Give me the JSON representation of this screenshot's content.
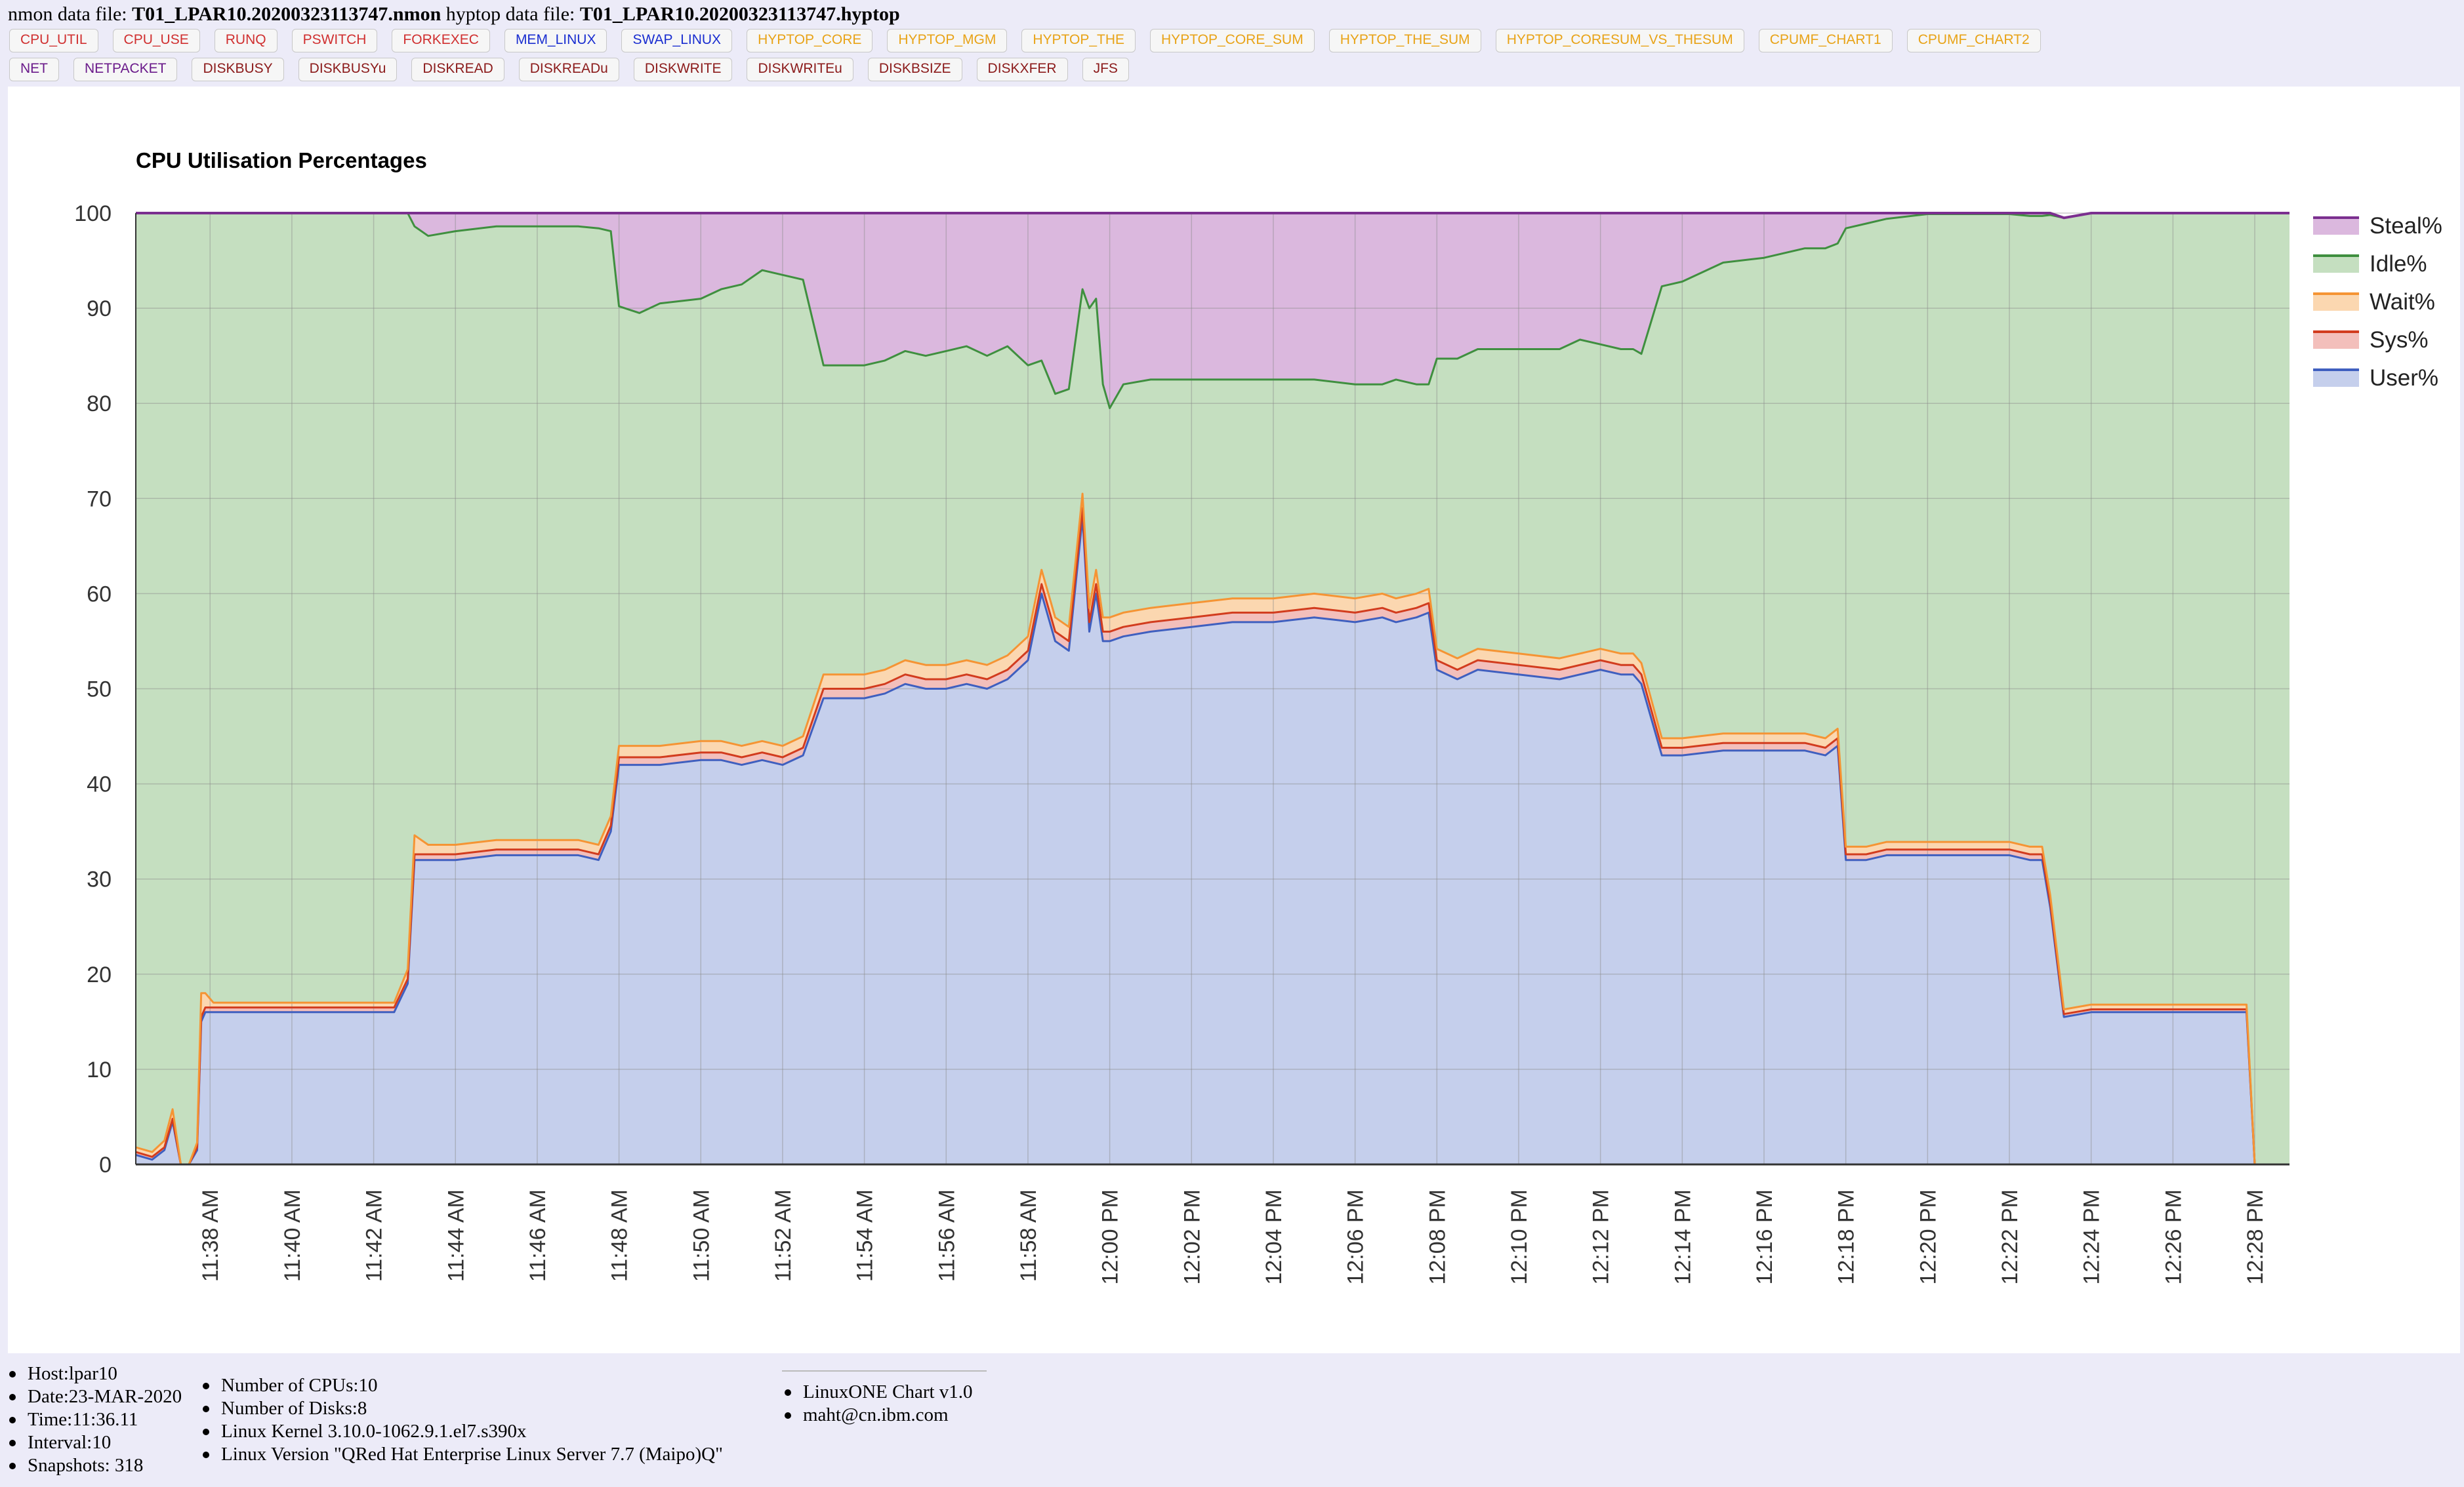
{
  "header": {
    "nmon_prefix": "nmon data file: ",
    "nmon_file": "T01_LPAR10.20200323113747.nmon",
    "hyptop_prefix": " hyptop data file: ",
    "hyptop_file": "T01_LPAR10.20200323113747.hyptop"
  },
  "buttons_row1": [
    {
      "label": "CPU_UTIL",
      "color": "#d03030"
    },
    {
      "label": "CPU_USE",
      "color": "#d03030"
    },
    {
      "label": "RUNQ",
      "color": "#d03030"
    },
    {
      "label": "PSWITCH",
      "color": "#d03030"
    },
    {
      "label": "FORKEXEC",
      "color": "#d03030"
    },
    {
      "label": "MEM_LINUX",
      "color": "#1a2ed0"
    },
    {
      "label": "SWAP_LINUX",
      "color": "#1a2ed0"
    },
    {
      "label": "HYPTOP_CORE",
      "color": "#e8a317"
    },
    {
      "label": "HYPTOP_MGM",
      "color": "#e8a317"
    },
    {
      "label": "HYPTOP_THE",
      "color": "#e8a317"
    },
    {
      "label": "HYPTOP_CORE_SUM",
      "color": "#e8a317"
    },
    {
      "label": "HYPTOP_THE_SUM",
      "color": "#e8a317"
    },
    {
      "label": "HYPTOP_CORESUM_VS_THESUM",
      "color": "#e8a317"
    },
    {
      "label": "CPUMF_CHART1",
      "color": "#e8a317"
    },
    {
      "label": "CPUMF_CHART2",
      "color": "#e8a317"
    }
  ],
  "buttons_row2": [
    {
      "label": "NET",
      "color": "#6a1a8a"
    },
    {
      "label": "NETPACKET",
      "color": "#6a1a8a"
    },
    {
      "label": "DISKBUSY",
      "color": "#8b1a1a"
    },
    {
      "label": "DISKBUSYu",
      "color": "#8b1a1a"
    },
    {
      "label": "DISKREAD",
      "color": "#8b1a1a"
    },
    {
      "label": "DISKREADu",
      "color": "#8b1a1a"
    },
    {
      "label": "DISKWRITE",
      "color": "#8b1a1a"
    },
    {
      "label": "DISKWRITEu",
      "color": "#8b1a1a"
    },
    {
      "label": "DISKBSIZE",
      "color": "#8b1a1a"
    },
    {
      "label": "DISKXFER",
      "color": "#8b1a1a"
    },
    {
      "label": "JFS",
      "color": "#8b1a1a"
    }
  ],
  "chart_data": {
    "type": "area",
    "stacked": true,
    "title": "CPU Utilisation Percentages",
    "ylim": [
      0,
      100
    ],
    "yticks": [
      0,
      10,
      20,
      30,
      40,
      50,
      60,
      70,
      80,
      90,
      100
    ],
    "xlim": [
      "11:36:11",
      "12:28:51"
    ],
    "xticks": [
      "11:38 AM",
      "11:40 AM",
      "11:42 AM",
      "11:44 AM",
      "11:46 AM",
      "11:48 AM",
      "11:50 AM",
      "11:52 AM",
      "11:54 AM",
      "11:56 AM",
      "11:58 AM",
      "12:00 PM",
      "12:02 PM",
      "12:04 PM",
      "12:06 PM",
      "12:08 PM",
      "12:10 PM",
      "12:12 PM",
      "12:14 PM",
      "12:16 PM",
      "12:18 PM",
      "12:20 PM",
      "12:22 PM",
      "12:24 PM",
      "12:26 PM",
      "12:28 PM"
    ],
    "grid": true,
    "legend_position": "right",
    "legend": [
      "Steal%",
      "Idle%",
      "Wait%",
      "Sys%",
      "User%"
    ],
    "series_colors": {
      "User%": {
        "line": "#3f5fbf",
        "fill": "#c5cfec"
      },
      "Sys%": {
        "line": "#d23c1e",
        "fill": "#f3bfbb"
      },
      "Wait%": {
        "line": "#f59434",
        "fill": "#fbd7b0"
      },
      "Idle%": {
        "line": "#3f8f3f",
        "fill": "#c5dfc0"
      },
      "Steal%": {
        "line": "#7b2f8f",
        "fill": "#dbb8de"
      }
    },
    "x": [
      "11:36:11",
      "11:36:35",
      "11:36:53",
      "11:37:05",
      "11:37:17",
      "11:37:29",
      "11:37:41",
      "11:37:47",
      "11:37:53",
      "11:38:05",
      "11:38:35",
      "11:39:10",
      "11:40:00",
      "11:41:00",
      "11:41:30",
      "11:42:00",
      "11:42:30",
      "11:42:50",
      "11:43:00",
      "11:43:20",
      "11:44:00",
      "11:45:00",
      "11:46:00",
      "11:47:00",
      "11:47:30",
      "11:47:48",
      "11:48:00",
      "11:48:30",
      "11:49:00",
      "11:50:00",
      "11:50:30",
      "11:51:00",
      "11:51:30",
      "11:52:00",
      "11:52:30",
      "11:53:00",
      "11:53:30",
      "11:54:00",
      "11:54:30",
      "11:55:00",
      "11:55:30",
      "11:56:00",
      "11:56:30",
      "11:57:00",
      "11:57:30",
      "11:58:00",
      "11:58:20",
      "11:58:40",
      "11:59:00",
      "11:59:20",
      "11:59:30",
      "11:59:40",
      "11:59:50",
      "12:00:00",
      "12:00:20",
      "12:01:00",
      "12:02:00",
      "12:03:00",
      "12:04:00",
      "12:05:00",
      "12:06:00",
      "12:06:40",
      "12:07:00",
      "12:07:30",
      "12:07:48",
      "12:08:00",
      "12:08:30",
      "12:09:00",
      "12:10:00",
      "12:11:00",
      "12:11:30",
      "12:12:00",
      "12:12:30",
      "12:12:48",
      "12:13:00",
      "12:13:30",
      "12:14:00",
      "12:15:00",
      "12:16:00",
      "12:17:00",
      "12:17:30",
      "12:17:48",
      "12:18:00",
      "12:18:30",
      "12:19:00",
      "12:20:00",
      "12:21:00",
      "12:22:00",
      "12:22:30",
      "12:22:48",
      "12:23:00",
      "12:23:20",
      "12:24:00",
      "12:25:00",
      "12:26:00",
      "12:27:00",
      "12:27:30",
      "12:27:48",
      "12:28:00",
      "12:28:20",
      "12:28:51"
    ],
    "series": [
      {
        "name": "User%",
        "values": [
          1,
          0.5,
          1.5,
          4.5,
          0,
          0,
          1.5,
          15,
          16,
          16,
          16,
          16,
          16,
          16,
          16,
          16,
          16,
          19,
          32,
          32,
          32,
          32.5,
          32.5,
          32.5,
          32,
          35,
          42,
          42,
          42,
          42.5,
          42.5,
          42,
          42.5,
          42,
          43,
          49,
          49,
          49,
          49.5,
          50.5,
          50,
          50,
          50.5,
          50,
          51,
          53,
          60,
          55,
          54,
          68,
          56,
          60,
          55,
          55,
          55.5,
          56,
          56.5,
          57,
          57,
          57.5,
          57,
          57.5,
          57,
          57.5,
          58,
          52,
          51,
          52,
          51.5,
          51,
          51.5,
          52,
          51.5,
          51.5,
          50.5,
          43,
          43,
          43.5,
          43.5,
          43.5,
          43,
          44,
          32,
          32,
          32.5,
          32.5,
          32.5,
          32.5,
          32,
          32,
          27,
          15.5,
          16,
          16,
          16,
          16,
          16,
          16,
          0,
          0,
          0
        ]
      },
      {
        "name": "Sys%",
        "values": [
          0.3,
          0.3,
          0.3,
          0.3,
          0,
          0,
          0.3,
          0.5,
          0.5,
          0.5,
          0.5,
          0.5,
          0.5,
          0.5,
          0.5,
          0.5,
          0.5,
          0.5,
          0.6,
          0.6,
          0.6,
          0.6,
          0.6,
          0.6,
          0.6,
          0.6,
          0.8,
          0.8,
          0.8,
          0.8,
          0.8,
          0.8,
          0.8,
          0.8,
          0.8,
          1,
          1,
          1,
          1,
          1,
          1,
          1,
          1,
          1,
          1,
          1,
          1,
          1,
          1,
          1,
          1,
          1,
          1,
          1,
          1,
          1,
          1,
          1,
          1,
          1,
          1,
          1,
          1,
          1,
          1,
          1,
          1,
          1,
          1,
          1,
          1,
          1,
          1,
          1,
          1,
          0.8,
          0.8,
          0.8,
          0.8,
          0.8,
          0.8,
          0.8,
          0.6,
          0.6,
          0.6,
          0.6,
          0.6,
          0.6,
          0.6,
          0.6,
          0.5,
          0.3,
          0.3,
          0.3,
          0.3,
          0.3,
          0.3,
          0.3,
          0,
          0,
          0
        ]
      },
      {
        "name": "Wait%",
        "values": [
          0.5,
          0.5,
          0.7,
          1,
          0,
          0,
          0.5,
          2.5,
          1.5,
          0.5,
          0.5,
          0.5,
          0.5,
          0.5,
          0.5,
          0.5,
          0.5,
          1,
          2,
          1,
          1,
          1,
          1,
          1,
          1,
          1,
          1.2,
          1.2,
          1.2,
          1.2,
          1.2,
          1.2,
          1.2,
          1.2,
          1.2,
          1.5,
          1.5,
          1.5,
          1.5,
          1.5,
          1.5,
          1.5,
          1.5,
          1.5,
          1.5,
          1.5,
          1.5,
          1.5,
          1.5,
          1.5,
          1.5,
          1.5,
          1.5,
          1.5,
          1.5,
          1.5,
          1.5,
          1.5,
          1.5,
          1.5,
          1.5,
          1.5,
          1.5,
          1.5,
          1.5,
          1.2,
          1.2,
          1.2,
          1.2,
          1.2,
          1.2,
          1.2,
          1.2,
          1.2,
          1.2,
          1,
          1,
          1,
          1,
          1,
          1,
          1,
          0.8,
          0.8,
          0.8,
          0.8,
          0.8,
          0.8,
          0.8,
          0.8,
          0.8,
          0.5,
          0.5,
          0.5,
          0.5,
          0.5,
          0.5,
          0.5,
          0,
          0,
          0
        ]
      },
      {
        "name": "Idle%",
        "values": [
          98.2,
          98.7,
          97.5,
          94.2,
          100,
          100,
          97.7,
          82,
          82,
          83,
          83,
          83,
          83,
          83,
          83,
          83,
          83,
          79.5,
          64,
          64,
          64.5,
          64.5,
          64.5,
          64.5,
          64.8,
          61.5,
          46.2,
          45.5,
          46.5,
          46.5,
          47.5,
          48.5,
          49.5,
          49.5,
          48,
          32.5,
          32.5,
          32.5,
          32.5,
          32.5,
          32.5,
          33,
          33,
          32.5,
          32.5,
          28.5,
          22,
          23.5,
          25,
          21.5,
          31.5,
          28.5,
          24.5,
          22,
          24,
          24,
          23.5,
          23,
          23,
          22.5,
          22.5,
          22,
          23,
          22,
          21.5,
          30.5,
          31.5,
          31.5,
          32,
          32.5,
          33,
          32,
          32,
          32,
          32.5,
          47.5,
          48,
          49.5,
          50,
          51,
          51.5,
          51,
          65,
          65.5,
          65.5,
          66,
          66,
          66,
          66.3,
          66.3,
          71.5,
          83.2,
          83.2,
          83.2,
          83.2,
          83.2,
          83.2,
          83.2,
          100,
          100,
          100
        ]
      },
      {
        "name": "Steal%",
        "values": [
          0,
          0,
          0,
          0,
          0,
          0,
          0,
          0,
          0,
          0,
          0,
          0,
          0,
          0,
          0,
          0,
          0,
          0,
          1.4,
          2.4,
          1.9,
          1.4,
          1.4,
          1.4,
          1.6,
          1.9,
          9.8,
          10.5,
          9.5,
          9,
          8,
          7.5,
          6,
          6.5,
          7,
          16,
          16,
          16,
          15.5,
          14.5,
          15,
          14.5,
          14,
          15,
          14,
          16,
          15.5,
          19,
          19.5,
          8,
          10,
          9,
          18,
          20.5,
          18,
          17.5,
          17.5,
          17.5,
          17.5,
          17.5,
          18,
          18,
          17.5,
          18,
          18,
          15.3,
          15.3,
          14.3,
          14.3,
          14.3,
          13.3,
          13.8,
          14.3,
          14.3,
          15,
          7.7,
          7.2,
          5.2,
          4.7,
          3.7,
          3.7,
          3.2,
          1.6,
          1.1,
          0.6,
          0.1,
          0.1,
          0.1,
          0.3,
          0.3,
          0.2,
          0,
          0,
          0,
          0,
          0,
          0,
          0,
          0,
          0,
          0
        ]
      }
    ]
  },
  "info": {
    "col1": [
      "Host:lpar10",
      "Date:23-MAR-2020",
      "Time:11:36.11",
      "Interval:10",
      "Snapshots: 318"
    ],
    "col2": [
      "Number of CPUs:10",
      "Number of Disks:8",
      "Linux Kernel 3.10.0-1062.9.1.el7.s390x",
      "Linux Version \"QRed Hat Enterprise Linux Server 7.7 (Maipo)Q\""
    ],
    "col3": [
      "LinuxONE Chart v1.0",
      "maht@cn.ibm.com"
    ]
  }
}
